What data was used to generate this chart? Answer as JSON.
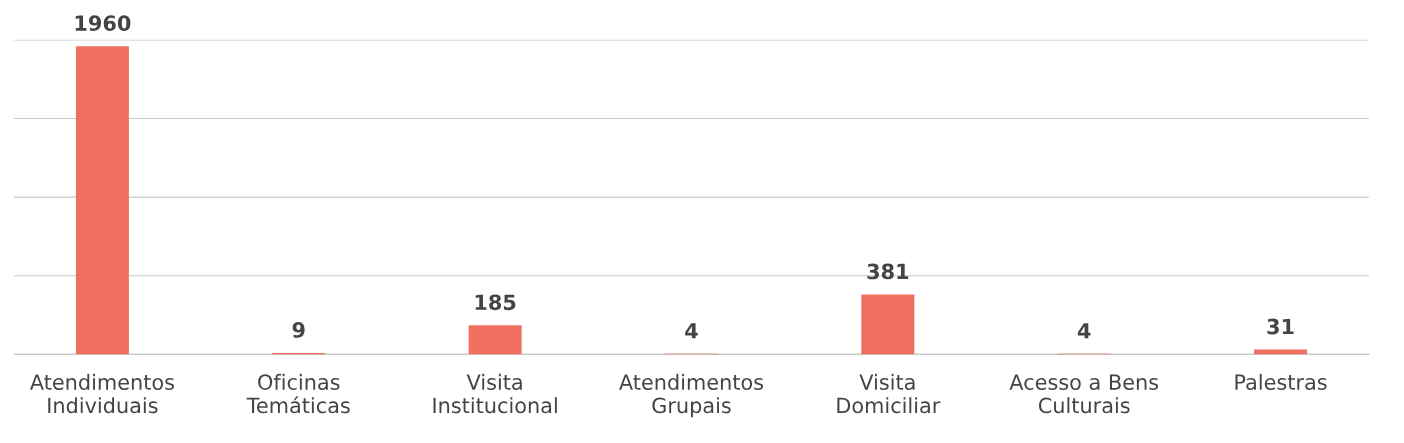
{
  "chart_data": {
    "type": "bar",
    "categories": [
      "Atendimentos\nIndividuais",
      "Oficinas\nTemáticas",
      "Visita\nInstitucional",
      "Atendimentos\nGrupais",
      "Visita\nDomiciliar",
      "Acesso a Bens\nCulturais",
      "Palestras"
    ],
    "values": [
      1960,
      9,
      185,
      4,
      381,
      4,
      31
    ],
    "color": "#f07060",
    "ylim": [
      0,
      2000
    ],
    "yticks": [
      {
        "value": 0,
        "label": null
      },
      {
        "value": 500,
        "label": null
      },
      {
        "value": 1000,
        "label": null
      },
      {
        "value": 1500,
        "label": null
      },
      {
        "value": 2000,
        "label": null
      }
    ],
    "grid": "y",
    "data_labels": true,
    "tick_labels": "x",
    "legend": false
  }
}
